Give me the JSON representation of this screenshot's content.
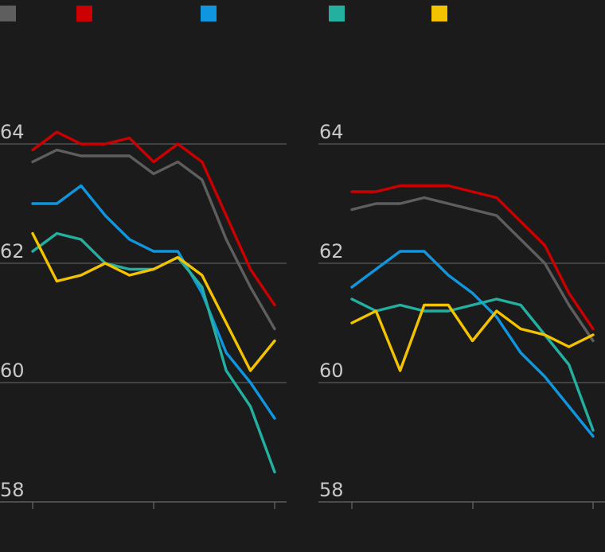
{
  "legend": [
    {
      "color": "#5e5e5e"
    },
    {
      "color": "#cc0000"
    },
    {
      "color": "#0f96de"
    },
    {
      "color": "#23b0a0"
    },
    {
      "color": "#f3c300"
    }
  ],
  "chart_data": [
    {
      "type": "line",
      "ylim": [
        58,
        64
      ],
      "y_ticks": [
        "64",
        "62",
        "60",
        "58"
      ],
      "x_count": 11,
      "grid": true,
      "series": [
        {
          "color": "#5e5e5e",
          "values": [
            63.7,
            63.9,
            63.8,
            63.8,
            63.8,
            63.5,
            63.7,
            63.4,
            62.4,
            61.6,
            60.9
          ]
        },
        {
          "color": "#cc0000",
          "values": [
            63.9,
            64.2,
            64.0,
            64.0,
            64.1,
            63.7,
            64.0,
            63.7,
            62.8,
            61.9,
            61.3
          ]
        },
        {
          "color": "#0f96de",
          "values": [
            63.0,
            63.0,
            63.3,
            62.8,
            62.4,
            62.2,
            62.2,
            61.5,
            60.5,
            60.0,
            59.4
          ]
        },
        {
          "color": "#23b0a0",
          "values": [
            62.2,
            62.5,
            62.4,
            62.0,
            61.9,
            61.9,
            62.1,
            61.6,
            60.2,
            59.6,
            58.5
          ]
        },
        {
          "color": "#f3c300",
          "values": [
            62.5,
            61.7,
            61.8,
            62.0,
            61.8,
            61.9,
            62.1,
            61.8,
            61.0,
            60.2,
            60.7
          ]
        }
      ]
    },
    {
      "type": "line",
      "ylim": [
        58,
        64
      ],
      "y_ticks": [
        "64",
        "62",
        "60",
        "58"
      ],
      "x_count": 11,
      "grid": true,
      "series": [
        {
          "color": "#5e5e5e",
          "values": [
            62.9,
            63.0,
            63.0,
            63.1,
            63.0,
            62.9,
            62.8,
            62.4,
            62.0,
            61.3,
            60.7
          ]
        },
        {
          "color": "#cc0000",
          "values": [
            63.2,
            63.2,
            63.3,
            63.3,
            63.3,
            63.2,
            63.1,
            62.7,
            62.3,
            61.5,
            60.9
          ]
        },
        {
          "color": "#0f96de",
          "values": [
            61.6,
            61.9,
            62.2,
            62.2,
            61.8,
            61.5,
            61.1,
            60.5,
            60.1,
            59.6,
            59.1
          ]
        },
        {
          "color": "#23b0a0",
          "values": [
            61.4,
            61.2,
            61.3,
            61.2,
            61.2,
            61.3,
            61.4,
            61.3,
            60.8,
            60.3,
            59.2
          ]
        },
        {
          "color": "#f3c300",
          "values": [
            61.0,
            61.2,
            60.2,
            61.3,
            61.3,
            60.7,
            61.2,
            60.9,
            60.8,
            60.6,
            60.8
          ]
        }
      ]
    }
  ]
}
